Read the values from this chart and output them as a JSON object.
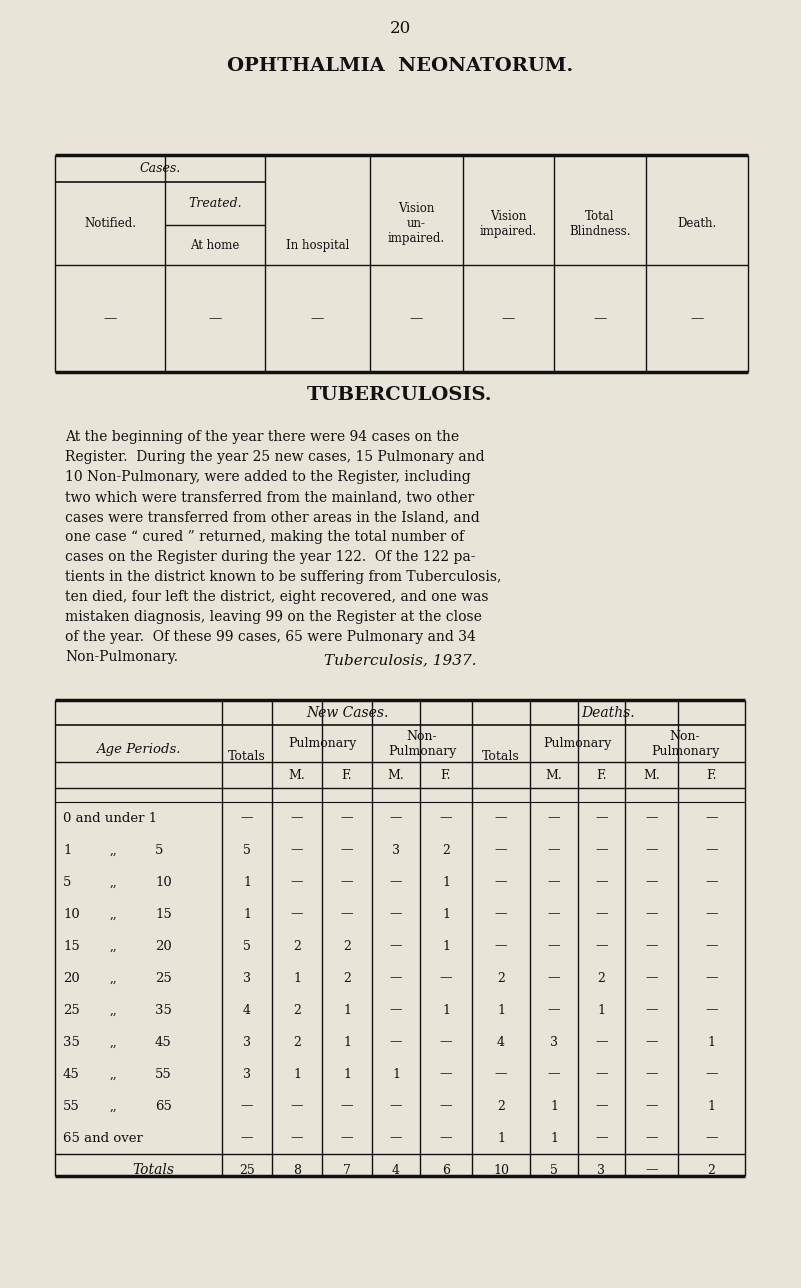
{
  "page_number": "20",
  "bg_color": "#e8e4d8",
  "text_color": "#111111",
  "title1": "OPHTHALMIA  NEONATORUM.",
  "title2": "TUBERCULOSIS.",
  "tb_title": "Tuberculosis, 1937.",
  "para_lines": [
    "At the beginning of the year there were 94 cases on the",
    "Register.  During the year 25 new cases, 15 Pulmonary and",
    "10 Non-Pulmonary, were added to the Register, including",
    "two which were transferred from the mainland, two other",
    "cases were transferred from other areas in the Island, and",
    "one case “ cured ” returned, making the total number of",
    "cases on the Register during the year 122.  Of the 122 pa-",
    "tients in the district known to be suffering from Tuberculosis,",
    "ten died, four left the district, eight recovered, and one was",
    "mistaken diagnosis, leaving 99 on the Register at the close",
    "of the year.  Of these 99 cases, 65 were Pulmonary and 34",
    "Non-Pulmonary."
  ],
  "new_cases_totals": [
    "—",
    "5",
    "1",
    "1",
    "5",
    "3",
    "4",
    "3",
    "3",
    "—",
    "—",
    "25"
  ],
  "new_pulm_M": [
    "—",
    "—",
    "—",
    "—",
    "2",
    "1",
    "2",
    "2",
    "1",
    "—",
    "—",
    "8"
  ],
  "new_pulm_F": [
    "—",
    "—",
    "—",
    "—",
    "2",
    "2",
    "1",
    "1",
    "1",
    "—",
    "—",
    "7"
  ],
  "new_nonpulm_M": [
    "—",
    "3",
    "—",
    "—",
    "—",
    "—",
    "—",
    "—",
    "1",
    "—",
    "—",
    "4"
  ],
  "new_nonpulm_F": [
    "—",
    "2",
    "1",
    "1",
    "1",
    "—",
    "1",
    "—",
    "—",
    "—",
    "—",
    "6"
  ],
  "death_totals": [
    "—",
    "—",
    "—",
    "—",
    "—",
    "2",
    "1",
    "4",
    "—",
    "2",
    "1",
    "10"
  ],
  "death_pulm_M": [
    "—",
    "—",
    "—",
    "—",
    "—",
    "—",
    "—",
    "3",
    "—",
    "1",
    "1",
    "5"
  ],
  "death_pulm_F": [
    "—",
    "—",
    "—",
    "—",
    "—",
    "2",
    "1",
    "—",
    "—",
    "—",
    "—",
    "3"
  ],
  "death_nonpulm_M": [
    "—",
    "—",
    "—",
    "—",
    "—",
    "—",
    "—",
    "—",
    "—",
    "—",
    "—",
    "—"
  ],
  "death_nonpulm_F": [
    "—",
    "—",
    "—",
    "—",
    "—",
    "—",
    "—",
    "1",
    "—",
    "1",
    "—",
    "2"
  ]
}
